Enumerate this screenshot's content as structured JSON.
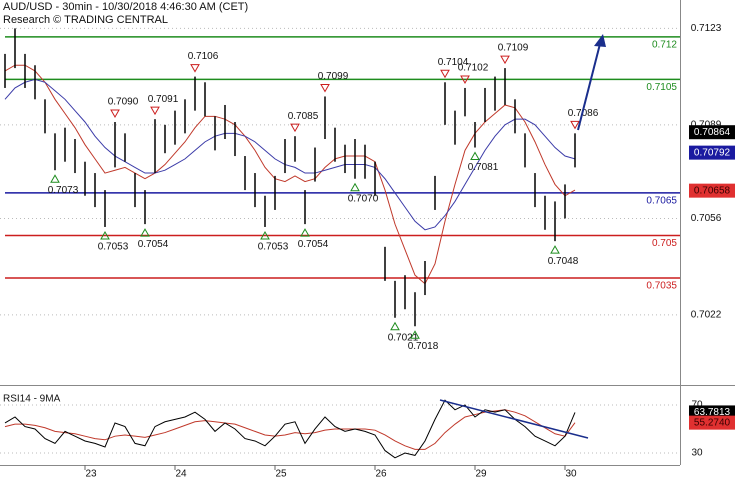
{
  "chart_data": {
    "type": "ohlc",
    "title": "AUD/USD - 30min - 10/30/2018 4:46:30 AM (CET)",
    "subtitle": "Research © TRADING CENTRAL",
    "categories": [
      null,
      null,
      null,
      null,
      null,
      null,
      null,
      null,
      "23",
      null,
      null,
      null,
      null,
      null,
      null,
      null,
      null,
      "24",
      null,
      null,
      null,
      null,
      null,
      null,
      null,
      null,
      null,
      "25",
      null,
      null,
      null,
      null,
      null,
      null,
      null,
      null,
      null,
      "26",
      null,
      null,
      null,
      null,
      null,
      null,
      null,
      null,
      null,
      "29",
      null,
      null,
      null,
      null,
      null,
      null,
      null,
      null,
      "30",
      null
    ],
    "color": "#000000",
    "high": [
      0.7114,
      0.7123,
      0.7114,
      0.711,
      0.7098,
      0.7086,
      0.7088,
      0.7084,
      0.7076,
      0.7072,
      0.7066,
      0.709,
      0.7086,
      0.7072,
      0.7066,
      0.7091,
      0.7089,
      0.7094,
      0.7098,
      0.7106,
      0.7104,
      0.7092,
      0.7096,
      0.709,
      0.7078,
      0.7072,
      0.7064,
      0.7071,
      0.7084,
      0.7085,
      0.7066,
      0.7081,
      0.7099,
      0.7088,
      0.7082,
      0.7084,
      0.7082,
      0.7076,
      0.7046,
      0.7034,
      0.7036,
      0.703,
      0.7041,
      0.7071,
      0.7104,
      0.7094,
      0.7102,
      0.709,
      0.7102,
      0.7106,
      0.7109,
      0.7098,
      0.7086,
      0.7072,
      0.7064,
      0.7062,
      0.7068,
      0.7086
    ],
    "low": [
      0.7102,
      0.7109,
      0.7102,
      0.7098,
      0.7086,
      0.7073,
      0.7076,
      0.7072,
      0.7064,
      0.706,
      0.7053,
      0.7074,
      0.7076,
      0.706,
      0.7054,
      0.7072,
      0.7079,
      0.7082,
      0.7086,
      0.7094,
      0.7092,
      0.708,
      0.7084,
      0.7078,
      0.7066,
      0.706,
      0.7053,
      0.7059,
      0.7072,
      0.7076,
      0.7054,
      0.7069,
      0.7084,
      0.7076,
      0.7072,
      0.707,
      0.707,
      0.7064,
      0.7034,
      0.7021,
      0.7024,
      0.7018,
      0.7029,
      0.7059,
      0.7089,
      0.7082,
      0.7092,
      0.7081,
      0.709,
      0.7094,
      0.7096,
      0.7086,
      0.7074,
      0.706,
      0.7052,
      0.7048,
      0.7056,
      0.7074
    ],
    "high_labels": [
      null,
      null,
      null,
      null,
      null,
      null,
      null,
      null,
      null,
      null,
      null,
      "0.7090",
      null,
      null,
      null,
      "0.7091",
      null,
      null,
      null,
      "0.7106",
      null,
      null,
      null,
      null,
      null,
      null,
      null,
      null,
      null,
      "0.7085",
      null,
      null,
      "0.7099",
      null,
      null,
      null,
      null,
      null,
      null,
      null,
      null,
      null,
      null,
      null,
      "0.7104",
      null,
      "0.7102",
      null,
      null,
      null,
      "0.7109",
      null,
      null,
      null,
      null,
      null,
      null,
      "0.7086"
    ],
    "low_labels": [
      null,
      null,
      null,
      null,
      null,
      "0.7073",
      null,
      null,
      null,
      null,
      "0.7053",
      null,
      null,
      null,
      "0.7054",
      null,
      null,
      null,
      null,
      null,
      null,
      null,
      null,
      null,
      null,
      null,
      "0.7053",
      null,
      null,
      null,
      "0.7054",
      null,
      null,
      null,
      null,
      "0.7070",
      null,
      null,
      null,
      "0.7021",
      null,
      "0.7018",
      null,
      null,
      null,
      null,
      null,
      "0.7081",
      null,
      null,
      null,
      null,
      null,
      null,
      null,
      "0.7048",
      null,
      null
    ],
    "series": [
      {
        "color": "#c0392b",
        "values": [
          0.7108,
          0.711,
          0.711,
          0.7108,
          0.7104,
          0.7098,
          0.7093,
          0.7088,
          0.7082,
          0.7077,
          0.7072,
          0.7073,
          0.7074,
          0.7072,
          0.707,
          0.7072,
          0.7075,
          0.7079,
          0.7083,
          0.7088,
          0.7092,
          0.7092,
          0.7091,
          0.7089,
          0.7085,
          0.708,
          0.7074,
          0.707,
          0.7069,
          0.7071,
          0.7069,
          0.707,
          0.7074,
          0.7077,
          0.7078,
          0.7078,
          0.7078,
          0.7076,
          0.7066,
          0.7054,
          0.7045,
          0.7036,
          0.7033,
          0.704,
          0.7055,
          0.7068,
          0.708,
          0.7086,
          0.709,
          0.7093,
          0.7096,
          0.7095,
          0.709,
          0.7083,
          0.7075,
          0.7068,
          0.7064,
          0.7066
        ]
      },
      {
        "color": "#3b3ba8",
        "values": [
          0.7098,
          0.7102,
          0.7104,
          0.7105,
          0.7104,
          0.7101,
          0.7098,
          0.7094,
          0.709,
          0.7085,
          0.7081,
          0.7078,
          0.7076,
          0.7074,
          0.7072,
          0.7072,
          0.7073,
          0.7075,
          0.7077,
          0.708,
          0.7083,
          0.7085,
          0.7086,
          0.7086,
          0.7085,
          0.7083,
          0.708,
          0.7077,
          0.7075,
          0.7074,
          0.7072,
          0.7072,
          0.7073,
          0.7074,
          0.7075,
          0.7075,
          0.7075,
          0.7074,
          0.707,
          0.7065,
          0.706,
          0.7055,
          0.7052,
          0.7053,
          0.7057,
          0.7062,
          0.7068,
          0.7074,
          0.708,
          0.7085,
          0.7089,
          0.7091,
          0.7091,
          0.7089,
          0.7085,
          0.7081,
          0.7078,
          0.7077
        ]
      }
    ],
    "levels": [
      {
        "value": 0.712,
        "color": "#1e8c1e"
      },
      {
        "value": 0.7105,
        "color": "#1e8c1e"
      },
      {
        "value": 0.7065,
        "color": "#1a1aa0"
      },
      {
        "value": 0.705,
        "color": "#cc1e1e"
      },
      {
        "value": 0.7035,
        "color": "#cc1e1e"
      }
    ],
    "ylim": [
      0.6998,
      0.7133
    ],
    "yticks": [
      0.7123,
      0.7089,
      0.7056,
      0.7022
    ],
    "grid": true,
    "price_tags": [
      {
        "value": 0.70864,
        "color": "#000000",
        "text_color": "#ffffff"
      },
      {
        "value": 0.70792,
        "color": "#1a1aa0",
        "text_color": "#ffffff"
      },
      {
        "value": 0.70658,
        "color": "#e03030",
        "text_color": "#3a0000"
      }
    ],
    "rsi": {
      "title": "RSI14 - 9MA",
      "color": "#000000",
      "ma_color": "#c0392b",
      "values": [
        55,
        60,
        52,
        50,
        42,
        38,
        48,
        44,
        40,
        38,
        35,
        55,
        52,
        38,
        36,
        52,
        56,
        58,
        60,
        64,
        58,
        48,
        55,
        50,
        42,
        40,
        36,
        44,
        54,
        56,
        38,
        50,
        60,
        52,
        48,
        50,
        48,
        45,
        32,
        26,
        30,
        28,
        40,
        58,
        74,
        66,
        70,
        60,
        66,
        64,
        66,
        58,
        52,
        44,
        40,
        36,
        44,
        63.7813
      ],
      "ma": [
        52,
        54,
        54,
        53,
        51,
        48,
        47,
        46,
        44,
        42,
        41,
        44,
        45,
        44,
        43,
        45,
        47,
        50,
        53,
        56,
        57,
        56,
        55,
        54,
        51,
        48,
        45,
        44,
        45,
        47,
        46,
        47,
        49,
        50,
        50,
        50,
        50,
        49,
        45,
        40,
        36,
        33,
        33,
        38,
        47,
        54,
        60,
        62,
        64,
        65,
        66,
        64,
        61,
        56,
        51,
        46,
        44,
        55.274
      ],
      "value_labels": {
        "last": "63.7813",
        "ma_last": "55.2740"
      },
      "ylim": [
        20,
        78.3
      ],
      "yticks": [
        70,
        30
      ]
    }
  }
}
